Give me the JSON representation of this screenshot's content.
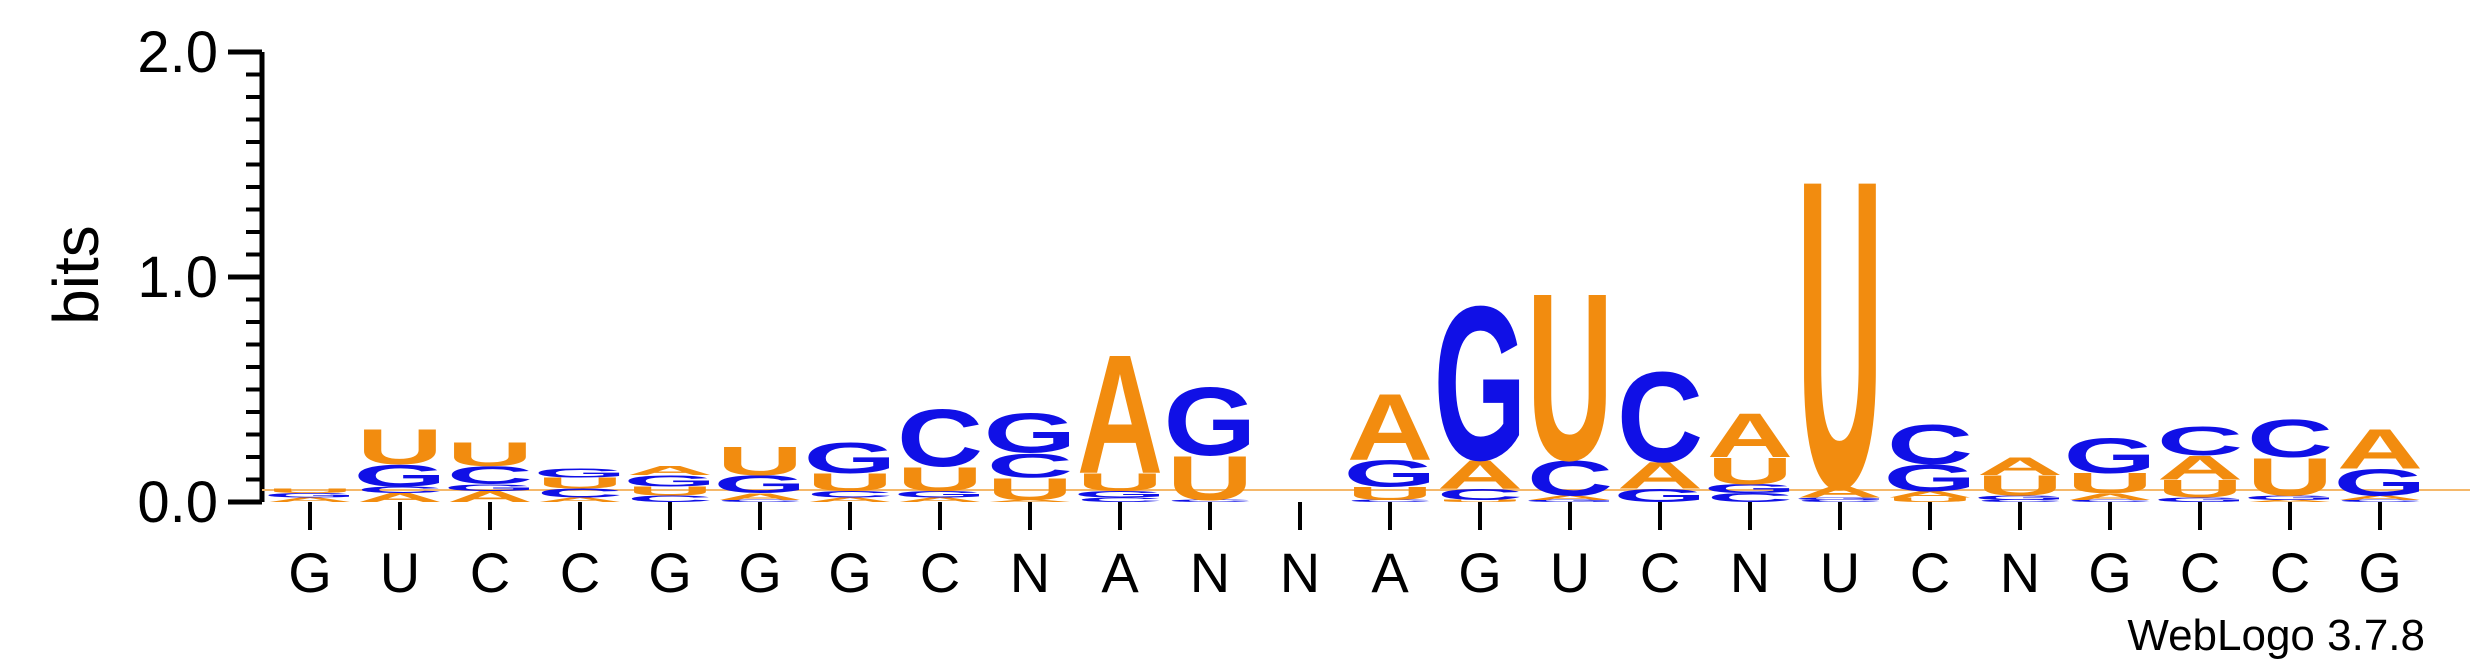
{
  "chart_data": {
    "type": "sequence-logo",
    "ylabel": "bits",
    "ylim": [
      0,
      2.0
    ],
    "yticks": [
      "0.0",
      "1.0",
      "2.0"
    ],
    "credit": "WebLogo 3.7.8",
    "colors": {
      "A": "#f28c0f",
      "U": "#f28c0f",
      "G": "#1010e6",
      "C": "#1010e6"
    },
    "positions": [
      {
        "label": "G",
        "stack": [
          [
            "A",
            0.02
          ],
          [
            "G",
            0.02
          ],
          [
            "U",
            0.02
          ]
        ]
      },
      {
        "label": "U",
        "stack": [
          [
            "A",
            0.04
          ],
          [
            "C",
            0.03
          ],
          [
            "G",
            0.1
          ],
          [
            "U",
            0.16
          ]
        ]
      },
      {
        "label": "C",
        "stack": [
          [
            "A",
            0.05
          ],
          [
            "G",
            0.03
          ],
          [
            "C",
            0.08
          ],
          [
            "U",
            0.11
          ]
        ]
      },
      {
        "label": "C",
        "stack": [
          [
            "A",
            0.02
          ],
          [
            "C",
            0.04
          ],
          [
            "U",
            0.05
          ],
          [
            "G",
            0.04
          ]
        ]
      },
      {
        "label": "G",
        "stack": [
          [
            "C",
            0.03
          ],
          [
            "U",
            0.04
          ],
          [
            "G",
            0.05
          ],
          [
            "A",
            0.04
          ]
        ]
      },
      {
        "label": "G",
        "stack": [
          [
            "C",
            0.01
          ],
          [
            "A",
            0.03
          ],
          [
            "G",
            0.08
          ],
          [
            "U",
            0.13
          ]
        ]
      },
      {
        "label": "G",
        "stack": [
          [
            "A",
            0.02
          ],
          [
            "C",
            0.03
          ],
          [
            "U",
            0.08
          ],
          [
            "G",
            0.14
          ]
        ]
      },
      {
        "label": "C",
        "stack": [
          [
            "A",
            0.02
          ],
          [
            "G",
            0.03
          ],
          [
            "U",
            0.11
          ],
          [
            "C",
            0.26
          ]
        ]
      },
      {
        "label": "N",
        "stack": [
          [
            "A",
            0.01
          ],
          [
            "U",
            0.1
          ],
          [
            "C",
            0.11
          ],
          [
            "G",
            0.18
          ]
        ]
      },
      {
        "label": "A",
        "stack": [
          [
            "C",
            0.02
          ],
          [
            "G",
            0.03
          ],
          [
            "U",
            0.08
          ],
          [
            "A",
            0.54
          ]
        ]
      },
      {
        "label": "N",
        "stack": [
          [
            "C",
            0.01
          ],
          [
            "U",
            0.2
          ],
          [
            "G",
            0.31
          ]
        ]
      },
      {
        "label": "N",
        "stack": []
      },
      {
        "label": "A",
        "stack": [
          [
            "C",
            0.01
          ],
          [
            "U",
            0.06
          ],
          [
            "G",
            0.12
          ],
          [
            "A",
            0.3
          ]
        ]
      },
      {
        "label": "G",
        "stack": [
          [
            "U",
            0.01
          ],
          [
            "C",
            0.05
          ],
          [
            "A",
            0.13
          ],
          [
            "G",
            0.7
          ]
        ]
      },
      {
        "label": "U",
        "stack": [
          [
            "G",
            0.01
          ],
          [
            "A",
            0.02
          ],
          [
            "C",
            0.16
          ],
          [
            "U",
            0.76
          ]
        ]
      },
      {
        "label": "C",
        "stack": [
          [
            "G",
            0.06
          ],
          [
            "A",
            0.12
          ],
          [
            "C",
            0.41
          ]
        ]
      },
      {
        "label": "N",
        "stack": [
          [
            "C",
            0.04
          ],
          [
            "G",
            0.04
          ],
          [
            "U",
            0.12
          ],
          [
            "A",
            0.2
          ]
        ]
      },
      {
        "label": "U",
        "stack": [
          [
            "C",
            0.01
          ],
          [
            "G",
            0.01
          ],
          [
            "A",
            0.05
          ],
          [
            "U",
            1.4
          ]
        ]
      },
      {
        "label": "C",
        "stack": [
          [
            "U",
            0.02
          ],
          [
            "A",
            0.03
          ],
          [
            "G",
            0.12
          ],
          [
            "C",
            0.18
          ]
        ]
      },
      {
        "label": "N",
        "stack": [
          [
            "C",
            0.01
          ],
          [
            "G",
            0.02
          ],
          [
            "U",
            0.09
          ],
          [
            "A",
            0.08
          ]
        ]
      },
      {
        "label": "G",
        "stack": [
          [
            "C",
            0.01
          ],
          [
            "A",
            0.03
          ],
          [
            "U",
            0.09
          ],
          [
            "G",
            0.16
          ]
        ]
      },
      {
        "label": "C",
        "stack": [
          [
            "G",
            0.02
          ],
          [
            "U",
            0.08
          ],
          [
            "A",
            0.11
          ],
          [
            "C",
            0.13
          ]
        ]
      },
      {
        "label": "C",
        "stack": [
          [
            "A",
            0.01
          ],
          [
            "G",
            0.02
          ],
          [
            "U",
            0.17
          ],
          [
            "C",
            0.17
          ]
        ]
      },
      {
        "label": "G",
        "stack": [
          [
            "C",
            0.01
          ],
          [
            "A",
            0.02
          ],
          [
            "G",
            0.12
          ],
          [
            "A",
            0.18
          ]
        ]
      }
    ]
  }
}
